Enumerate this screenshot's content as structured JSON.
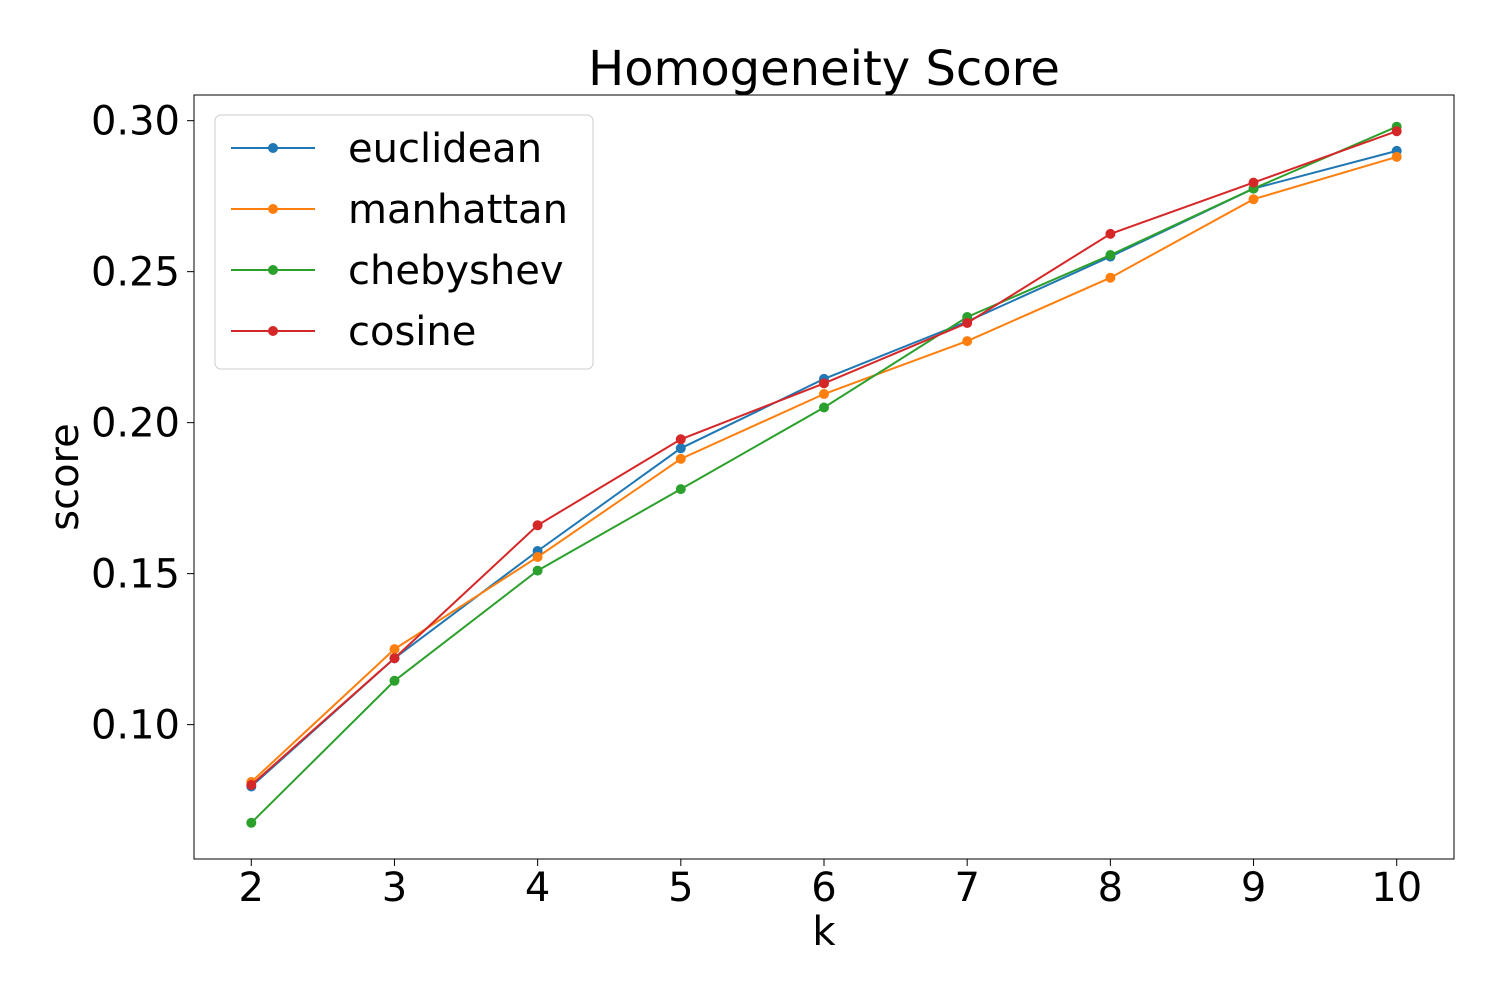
{
  "chart_data": {
    "type": "line",
    "title": "Homogeneity Score",
    "xlabel": "k",
    "ylabel": "score",
    "x": [
      2,
      3,
      4,
      5,
      6,
      7,
      8,
      9,
      10
    ],
    "xlim": [
      1.6,
      10.4
    ],
    "ylim": [
      0.0555,
      0.3085
    ],
    "xticks": [
      2,
      3,
      4,
      5,
      6,
      7,
      8,
      9,
      10
    ],
    "yticks": [
      0.1,
      0.15,
      0.2,
      0.25,
      0.3
    ],
    "ytick_labels": [
      "0.10",
      "0.15",
      "0.20",
      "0.25",
      "0.30"
    ],
    "grid": false,
    "legend_position": "top-left",
    "series": [
      {
        "name": "euclidean",
        "color": "#1f77b4",
        "values": [
          0.0795,
          0.122,
          0.1575,
          0.1915,
          0.2145,
          0.2335,
          0.255,
          0.2775,
          0.29
        ]
      },
      {
        "name": "manhattan",
        "color": "#ff7f0e",
        "values": [
          0.081,
          0.125,
          0.1555,
          0.188,
          0.2095,
          0.227,
          0.248,
          0.274,
          0.288
        ]
      },
      {
        "name": "chebyshev",
        "color": "#2ca02c",
        "values": [
          0.0675,
          0.1145,
          0.151,
          0.178,
          0.205,
          0.235,
          0.2555,
          0.2775,
          0.298
        ]
      },
      {
        "name": "cosine",
        "color": "#d62728",
        "values": [
          0.08,
          0.122,
          0.166,
          0.1945,
          0.213,
          0.233,
          0.2625,
          0.2795,
          0.2965
        ]
      }
    ]
  }
}
